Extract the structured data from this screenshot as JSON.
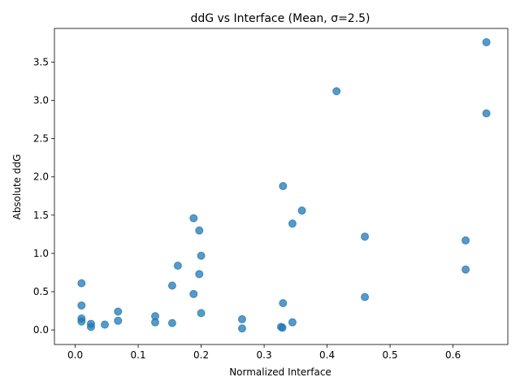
{
  "chart_data": {
    "type": "scatter",
    "title": "ddG vs Interface (Mean, σ=2.5)",
    "xlabel": "Normalized Interface",
    "ylabel": "Absolute ddG",
    "xlim": [
      -0.033,
      0.687
    ],
    "ylim": [
      -0.19,
      3.94
    ],
    "xticks": [
      0.0,
      0.1,
      0.2,
      0.3,
      0.4,
      0.5,
      0.6
    ],
    "xtick_labels": [
      "0.0",
      "0.1",
      "0.2",
      "0.3",
      "0.4",
      "0.5",
      "0.6"
    ],
    "yticks": [
      0.0,
      0.5,
      1.0,
      1.5,
      2.0,
      2.5,
      3.0,
      3.5
    ],
    "ytick_labels": [
      "0.0",
      "0.5",
      "1.0",
      "1.5",
      "2.0",
      "2.5",
      "3.0",
      "3.5"
    ],
    "grid": false,
    "marker_color": "#1f77b4",
    "marker_alpha": 0.75,
    "x": [
      0.653,
      0.415,
      0.653,
      0.33,
      0.36,
      0.188,
      0.197,
      0.345,
      0.46,
      0.62,
      0.2,
      0.163,
      0.62,
      0.197,
      0.01,
      0.154,
      0.188,
      0.46,
      0.01,
      0.33,
      0.068,
      0.2,
      0.127,
      0.01,
      0.265,
      0.01,
      0.068,
      0.127,
      0.345,
      0.154,
      0.025,
      0.047,
      0.025,
      0.327,
      0.329,
      0.265
    ],
    "y": [
      3.76,
      3.12,
      2.83,
      1.88,
      1.56,
      1.46,
      1.3,
      1.39,
      1.22,
      1.17,
      0.97,
      0.84,
      0.79,
      0.73,
      0.61,
      0.58,
      0.47,
      0.43,
      0.32,
      0.35,
      0.24,
      0.22,
      0.18,
      0.15,
      0.14,
      0.11,
      0.12,
      0.1,
      0.1,
      0.09,
      0.08,
      0.07,
      0.04,
      0.04,
      0.03,
      0.02
    ]
  }
}
